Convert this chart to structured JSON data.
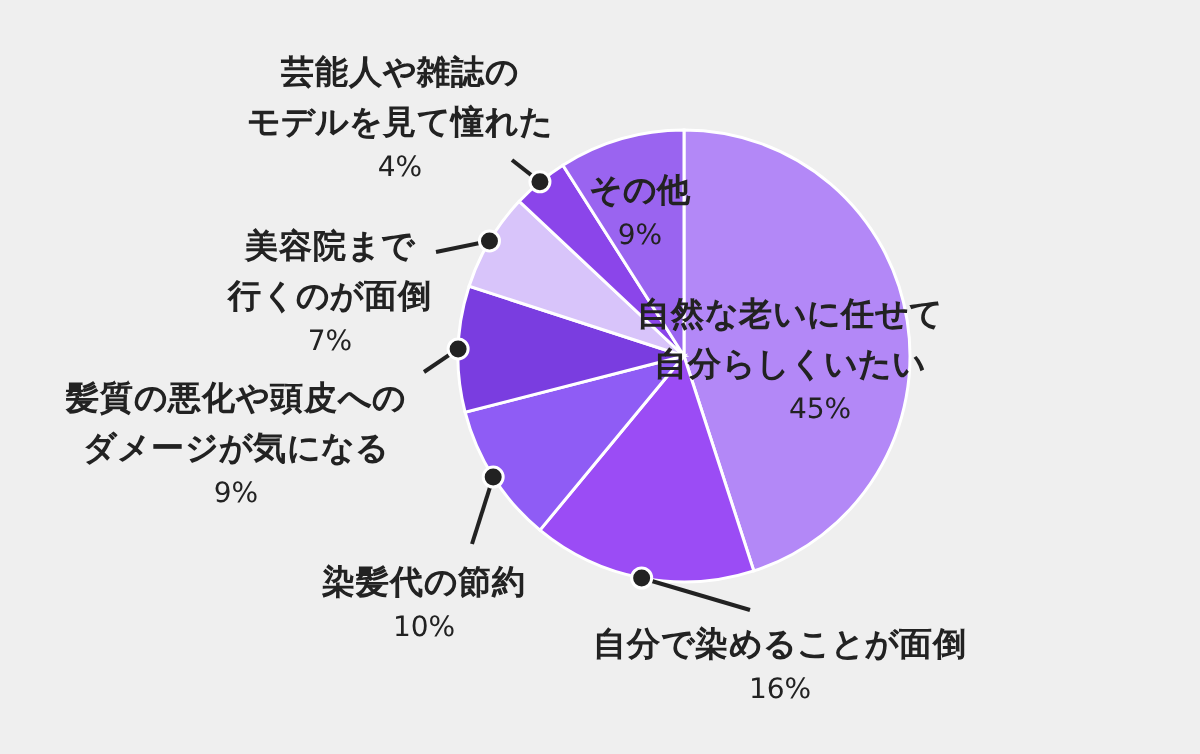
{
  "chart_data": {
    "type": "pie",
    "categories": [
      "自然な老いに任せて自分らしくいたい",
      "自分で染めることが面倒",
      "染髪代の節約",
      "髪質の悪化や頭皮へのダメージが気になる",
      "美容院まで行くのが面倒",
      "芸能人や雑誌のモデルを見て憧れた",
      "その他"
    ],
    "values": [
      45,
      16,
      10,
      9,
      7,
      4,
      9
    ],
    "value_labels": [
      "45%",
      "16%",
      "10%",
      "9%",
      "7%",
      "4%",
      "9%"
    ],
    "colors": [
      "#b388f7",
      "#9b4cf5",
      "#8f5cf5",
      "#7a3de0",
      "#d8c4fa",
      "#8b45ea",
      "#9a64f0"
    ]
  }
}
